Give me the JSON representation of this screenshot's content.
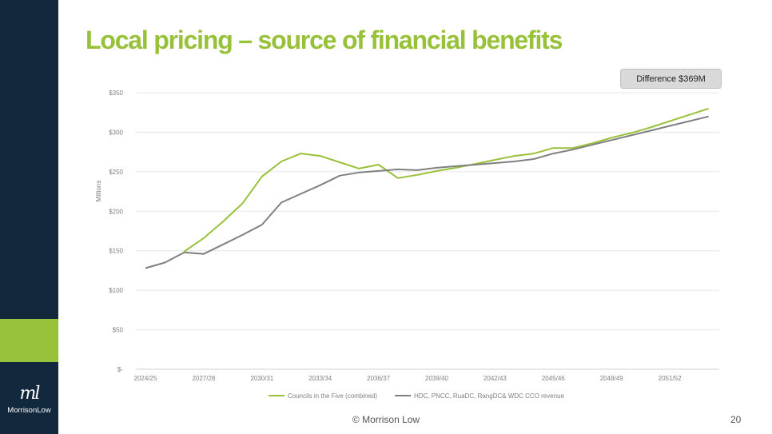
{
  "slide": {
    "title": "Local pricing – source of financial benefits",
    "badge": "Difference $369M",
    "footer": "© Morrison Low",
    "page_number": "20",
    "logo_mark": "ml",
    "logo_text": "MorrisonLow",
    "colors": {
      "sidebar": "#12283d",
      "accent": "#98c13a",
      "series_gray": "#808080"
    }
  },
  "chart_data": {
    "type": "line",
    "title": "",
    "xlabel": "",
    "ylabel": "Millions",
    "ylim": [
      0,
      350
    ],
    "yticks": [
      0,
      50,
      100,
      150,
      200,
      250,
      300,
      350
    ],
    "ytick_labels": [
      "$-",
      "$50",
      "$100",
      "$150",
      "$200",
      "$250",
      "$300",
      "$350"
    ],
    "x": [
      "2024/25",
      "2025/26",
      "2026/27",
      "2027/28",
      "2028/29",
      "2029/30",
      "2030/31",
      "2031/32",
      "2032/33",
      "2033/34",
      "2034/35",
      "2035/36",
      "2036/37",
      "2037/38",
      "2038/39",
      "2039/40",
      "2040/41",
      "2041/42",
      "2042/43",
      "2043/44",
      "2044/45",
      "2045/46",
      "2046/47",
      "2047/48",
      "2048/49",
      "2049/50",
      "2050/51",
      "2051/52",
      "2052/53",
      "2053/54"
    ],
    "xtick_labels": [
      "2024/25",
      "2027/28",
      "2030/31",
      "2033/34",
      "2036/37",
      "2039/40",
      "2042/43",
      "2045/46",
      "2048/49",
      "2051/52"
    ],
    "xtick_every": 3,
    "grid": true,
    "legend_position": "bottom",
    "series": [
      {
        "name": "Councils in the Five (combined)",
        "color": "#98c13a",
        "values": [
          null,
          null,
          149,
          166,
          187,
          210,
          244,
          263,
          273,
          270,
          262,
          254,
          259,
          242,
          246,
          251,
          255,
          260,
          265,
          270,
          273,
          280,
          280,
          286,
          293,
          299,
          306,
          314,
          322,
          330
        ]
      },
      {
        "name": "HDC, PNCC, RuaDC, RangDC& WDC CCO revenue",
        "color": "#808080",
        "values": [
          128,
          135,
          148,
          146,
          158,
          170,
          183,
          211,
          222,
          233,
          245,
          249,
          251,
          253,
          252,
          255,
          257,
          259,
          261,
          263,
          266,
          273,
          278,
          284,
          290,
          296,
          302,
          308,
          314,
          320
        ]
      }
    ]
  }
}
